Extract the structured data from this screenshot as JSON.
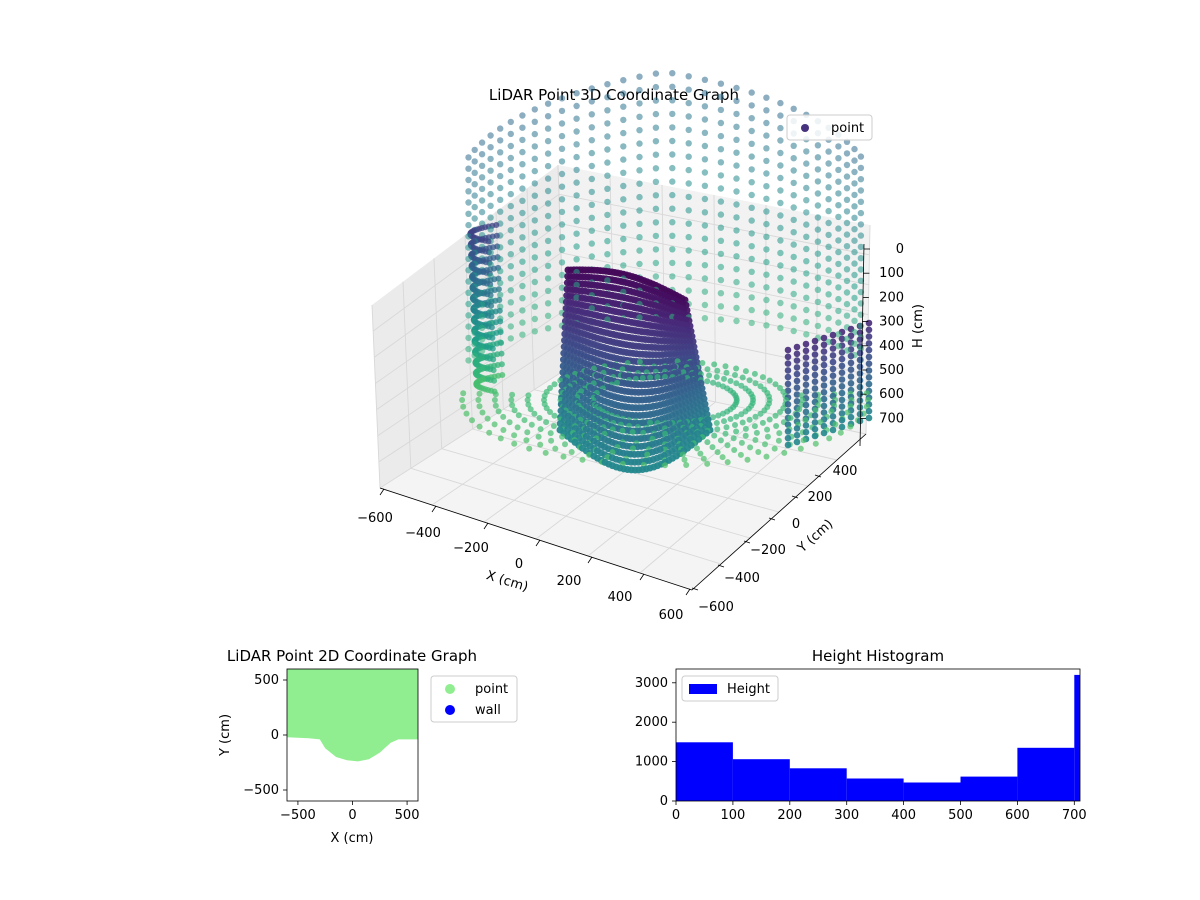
{
  "chart_data": [
    {
      "type": "scatter",
      "projection": "3d",
      "title": "LiDAR Point 3D Coordinate Graph",
      "xlabel": "X (cm)",
      "ylabel": "Y (cm)",
      "zlabel": "H (cm)",
      "xlim": [
        -600,
        600
      ],
      "ylim": [
        -600,
        600
      ],
      "zlim": [
        0,
        700
      ],
      "z_axis_inverted": true,
      "x_ticks": [
        "−600",
        "−400",
        "−200",
        "0",
        "200",
        "400",
        "600"
      ],
      "y_ticks": [
        "−600",
        "−400",
        "−200",
        "0",
        "200",
        "400"
      ],
      "z_ticks": [
        "0",
        "100",
        "200",
        "300",
        "400",
        "500",
        "600",
        "700"
      ],
      "z_tick_values": [
        0,
        100,
        200,
        300,
        400,
        500,
        600,
        700
      ],
      "legend": {
        "position": "top-right",
        "entries": [
          {
            "label": "point",
            "color": "#46327e"
          }
        ]
      },
      "colormap": "viridis",
      "grid": true
    },
    {
      "type": "scatter",
      "title": "LiDAR Point 2D Coordinate Graph",
      "xlabel": "X (cm)",
      "ylabel": "Y (cm)",
      "xlim": [
        -600,
        600
      ],
      "ylim": [
        -600,
        600
      ],
      "x_ticks": [
        -500,
        0,
        500
      ],
      "y_ticks": [
        -500,
        0,
        500
      ],
      "x_tick_labels": [
        "−500",
        "0",
        "500"
      ],
      "y_tick_labels": [
        "−500",
        "0",
        "500"
      ],
      "series": [
        {
          "name": "point",
          "color": "#90ee90",
          "boundary": [
            [
              -600,
              -20
            ],
            [
              -400,
              -30
            ],
            [
              -300,
              -40
            ],
            [
              -250,
              -120
            ],
            [
              -150,
              -200
            ],
            [
              -50,
              -230
            ],
            [
              50,
              -240
            ],
            [
              150,
              -220
            ],
            [
              250,
              -160
            ],
            [
              350,
              -70
            ],
            [
              420,
              -40
            ],
            [
              600,
              -40
            ]
          ]
        },
        {
          "name": "wall",
          "color": "#0000ff",
          "boundary": []
        }
      ],
      "legend": {
        "position": "outside-right"
      },
      "grid": false
    },
    {
      "type": "bar",
      "title": "Height Histogram",
      "xlim": [
        0,
        710
      ],
      "ylim": [
        0,
        3350
      ],
      "x_ticks": [
        0,
        100,
        200,
        300,
        400,
        500,
        600,
        700
      ],
      "y_ticks": [
        0,
        1000,
        2000,
        3000
      ],
      "bins": [
        [
          0,
          100
        ],
        [
          100,
          200
        ],
        [
          200,
          300
        ],
        [
          300,
          400
        ],
        [
          400,
          500
        ],
        [
          500,
          600
        ],
        [
          600,
          700
        ],
        [
          700,
          710
        ]
      ],
      "series": [
        {
          "name": "Height",
          "color": "#0000ff",
          "values": [
            1490,
            1060,
            830,
            570,
            470,
            620,
            1350,
            3200
          ]
        }
      ],
      "legend": {
        "position": "top-left"
      },
      "grid": false
    }
  ]
}
